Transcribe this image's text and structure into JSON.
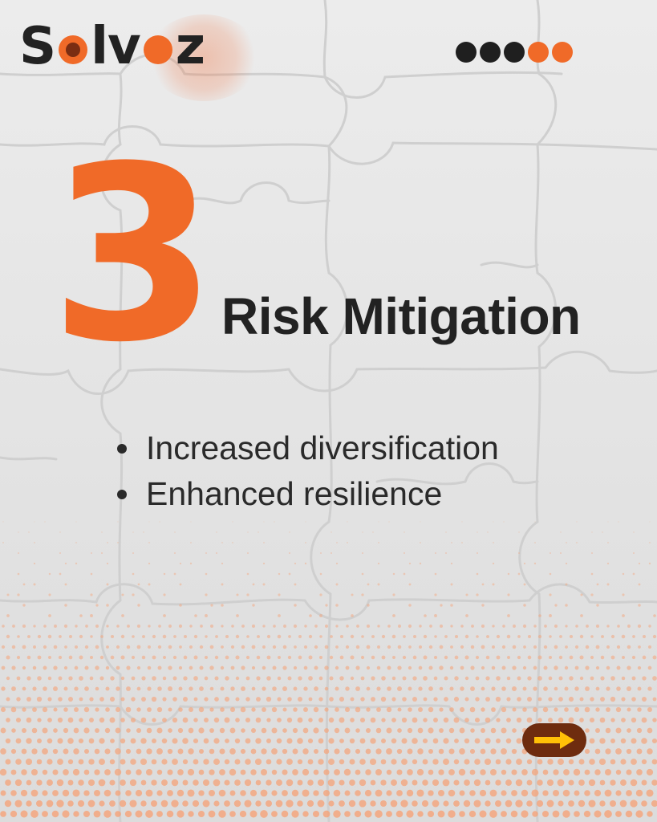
{
  "brand": {
    "logo_text": "Solvoz",
    "accent_color": "#f06a28",
    "dark_color": "#222222",
    "logo_icon": "solvoz-logo"
  },
  "pager": {
    "dots": [
      {
        "state": "done",
        "color": "#1f1f1f"
      },
      {
        "state": "done",
        "color": "#1f1f1f"
      },
      {
        "state": "done",
        "color": "#1f1f1f"
      },
      {
        "state": "upcoming",
        "color": "#f06a28"
      },
      {
        "state": "upcoming",
        "color": "#f06a28"
      }
    ]
  },
  "slide": {
    "number": "3",
    "title": "Risk Mitigation",
    "bullets": [
      "Increased diversification",
      "Enhanced resilience"
    ]
  },
  "background": {
    "base_color": "#e2e2e2",
    "pattern_icon": "jigsaw-puzzle-pattern",
    "halftone_color": "#f4a57c"
  },
  "next_button": {
    "icon": "arrow-right-icon",
    "background": "#6e2c0f",
    "arrow_color": "#ffc107"
  }
}
